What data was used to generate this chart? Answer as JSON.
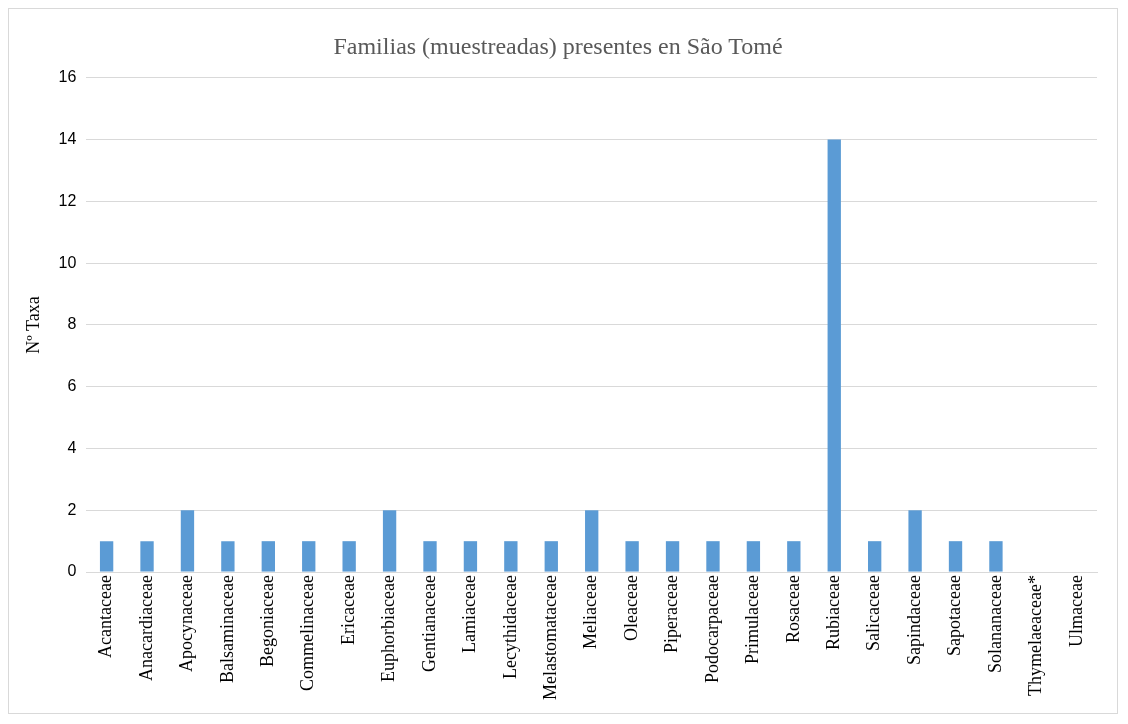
{
  "chart_data": {
    "type": "bar",
    "title": "Familias (muestreadas) presentes en São Tomé",
    "ylabel": "Nº Taxa",
    "categories": [
      "Acantaceae",
      "Anacardiaceae",
      "Apocynaceae",
      "Balsaminaceae",
      "Begoniaceae",
      "Commelinaceae",
      "Ericaceae",
      "Euphorbiaceae",
      "Gentianaceae",
      "Lamiaceae",
      "Lecythidaceae",
      "Melastomataceae",
      "Meliaceae",
      "Oleaceae",
      "Piperaceae",
      "Podocarpaceae",
      "Primulaceae",
      "Rosaceae",
      "Rubiaceae",
      "Salicaceae",
      "Sapindaceae",
      "Sapotaceae",
      "Solananaceae",
      "Thymelaeaceae*",
      "Ulmaceae"
    ],
    "values": [
      1,
      1,
      2,
      1,
      1,
      1,
      1,
      2,
      1,
      1,
      1,
      1,
      2,
      1,
      1,
      1,
      1,
      1,
      14,
      1,
      2,
      1,
      1,
      0,
      0
    ],
    "color": "#5b9bd5",
    "ylim": [
      0,
      16
    ],
    "yticks": [
      0,
      2,
      4,
      6,
      8,
      10,
      12,
      14,
      16
    ],
    "grid": "y",
    "legend": false
  }
}
